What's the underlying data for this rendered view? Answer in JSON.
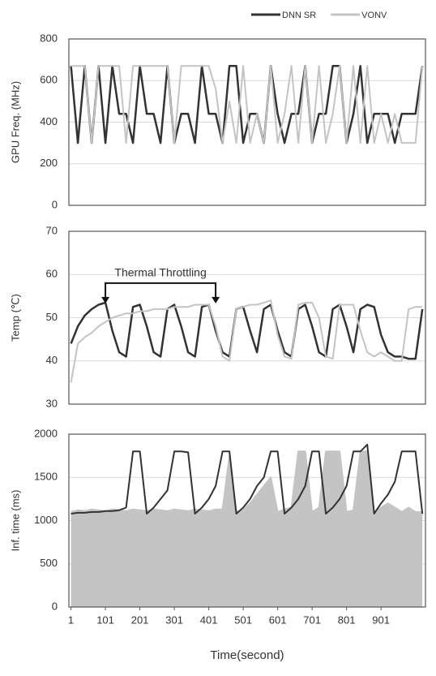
{
  "chart_data": [
    {
      "type": "line",
      "ylabel": "GPU Freq. (MHz)",
      "ylim": [
        0,
        800
      ],
      "yticks": [
        0,
        200,
        400,
        600,
        800
      ],
      "xlim": [
        -5,
        1030
      ],
      "grid": true,
      "legend": "top-right",
      "x": [
        1,
        21,
        41,
        61,
        81,
        101,
        121,
        141,
        161,
        181,
        201,
        221,
        241,
        261,
        281,
        301,
        321,
        341,
        361,
        381,
        401,
        421,
        441,
        461,
        481,
        501,
        521,
        541,
        561,
        581,
        601,
        621,
        641,
        661,
        681,
        701,
        721,
        741,
        761,
        781,
        801,
        821,
        841,
        861,
        881,
        901,
        921,
        941,
        961,
        981,
        1001,
        1021
      ],
      "series": [
        {
          "name": "DNN SR",
          "color": "#333333",
          "values": [
            670,
            300,
            670,
            300,
            670,
            300,
            670,
            440,
            440,
            300,
            670,
            440,
            440,
            300,
            670,
            300,
            440,
            440,
            300,
            670,
            440,
            440,
            300,
            670,
            670,
            300,
            440,
            440,
            300,
            670,
            440,
            300,
            440,
            440,
            670,
            300,
            440,
            440,
            670,
            670,
            300,
            440,
            670,
            300,
            440,
            440,
            440,
            300,
            440,
            440,
            440,
            670
          ]
        },
        {
          "name": "VONV",
          "color": "#c4c4c4",
          "values": [
            670,
            670,
            670,
            300,
            670,
            670,
            670,
            670,
            300,
            670,
            670,
            670,
            670,
            670,
            670,
            300,
            670,
            670,
            670,
            670,
            670,
            560,
            300,
            500,
            300,
            670,
            300,
            440,
            300,
            670,
            300,
            440,
            670,
            300,
            670,
            300,
            670,
            300,
            440,
            670,
            300,
            670,
            300,
            670,
            300,
            440,
            300,
            440,
            300,
            300,
            300,
            670
          ]
        }
      ]
    },
    {
      "type": "line",
      "ylabel": "Temp (℃)",
      "ylim": [
        30,
        70
      ],
      "yticks": [
        30,
        40,
        50,
        60,
        70
      ],
      "xlim": [
        -5,
        1030
      ],
      "grid": true,
      "annotation": {
        "text": "Thermal Throttling",
        "x": [
          101,
          421
        ],
        "y": 58
      },
      "x": [
        1,
        21,
        41,
        61,
        81,
        101,
        121,
        141,
        161,
        181,
        201,
        221,
        241,
        261,
        281,
        301,
        321,
        341,
        361,
        381,
        401,
        421,
        441,
        461,
        481,
        501,
        521,
        541,
        561,
        581,
        601,
        621,
        641,
        661,
        681,
        701,
        721,
        741,
        761,
        781,
        801,
        821,
        841,
        861,
        881,
        901,
        921,
        941,
        961,
        981,
        1001,
        1021
      ],
      "series": [
        {
          "color": "#333333",
          "values": [
            44,
            48,
            50.5,
            52,
            53,
            53.5,
            47,
            42,
            41,
            52.5,
            53,
            48,
            42,
            41,
            52,
            53,
            48,
            42,
            41,
            52.5,
            53,
            47,
            42,
            41,
            52,
            52.5,
            47,
            42,
            52,
            53,
            47,
            42,
            41,
            52,
            53,
            48,
            42,
            41,
            52,
            53,
            48,
            42,
            52,
            53,
            52.5,
            46,
            42,
            41,
            41,
            40.5,
            40.5,
            52
          ]
        },
        {
          "color": "#c4c4c4",
          "values": [
            35,
            44,
            45.5,
            46.5,
            48,
            49,
            50,
            50.5,
            51,
            51,
            51.5,
            51.5,
            52,
            52,
            52,
            52.5,
            52.5,
            52.5,
            53,
            53,
            53,
            48,
            41,
            40,
            52,
            52.5,
            53,
            53,
            53.5,
            54,
            46,
            41,
            40.5,
            53,
            53.5,
            53.5,
            50,
            41,
            40.5,
            53,
            53,
            53,
            47,
            42,
            41,
            42,
            41,
            40,
            40,
            52,
            52.5,
            52.5
          ]
        }
      ]
    },
    {
      "type": "line",
      "ylabel": "Inf. time (ms)",
      "xlabel": "Time(second)",
      "ylim": [
        0,
        2000
      ],
      "yticks": [
        0,
        500,
        1000,
        1500,
        2000
      ],
      "xlim": [
        -5,
        1030
      ],
      "xticks": [
        1,
        101,
        201,
        301,
        401,
        501,
        601,
        701,
        801,
        901
      ],
      "grid": true,
      "x": [
        1,
        21,
        41,
        61,
        81,
        101,
        121,
        141,
        161,
        181,
        201,
        221,
        241,
        261,
        281,
        301,
        321,
        341,
        361,
        381,
        401,
        421,
        441,
        461,
        481,
        501,
        521,
        541,
        561,
        581,
        601,
        621,
        641,
        661,
        681,
        701,
        721,
        741,
        761,
        781,
        801,
        821,
        841,
        861,
        881,
        901,
        921,
        941,
        961,
        981,
        1001,
        1021
      ],
      "series": [
        {
          "color": "#c4c4c4",
          "fill": true,
          "values": [
            1100,
            1120,
            1110,
            1130,
            1120,
            1110,
            1130,
            1120,
            1110,
            1130,
            1120,
            1110,
            1130,
            1120,
            1110,
            1130,
            1120,
            1110,
            1130,
            1120,
            1110,
            1130,
            1130,
            1750,
            1100,
            1120,
            1200,
            1300,
            1400,
            1500,
            1100,
            1130,
            1150,
            1800,
            1800,
            1100,
            1150,
            1800,
            1800,
            1800,
            1100,
            1120,
            1800,
            1800,
            1100,
            1150,
            1200,
            1150,
            1100,
            1150,
            1100,
            1100
          ]
        },
        {
          "color": "#333333",
          "values": [
            1080,
            1090,
            1090,
            1100,
            1100,
            1110,
            1110,
            1120,
            1150,
            1800,
            1800,
            1080,
            1150,
            1250,
            1350,
            1800,
            1800,
            1790,
            1080,
            1150,
            1250,
            1400,
            1800,
            1800,
            1080,
            1150,
            1250,
            1400,
            1500,
            1800,
            1800,
            1080,
            1150,
            1250,
            1400,
            1800,
            1800,
            1080,
            1150,
            1250,
            1400,
            1800,
            1800,
            1880,
            1080,
            1200,
            1300,
            1450,
            1800,
            1800,
            1800,
            1080
          ]
        }
      ]
    }
  ]
}
